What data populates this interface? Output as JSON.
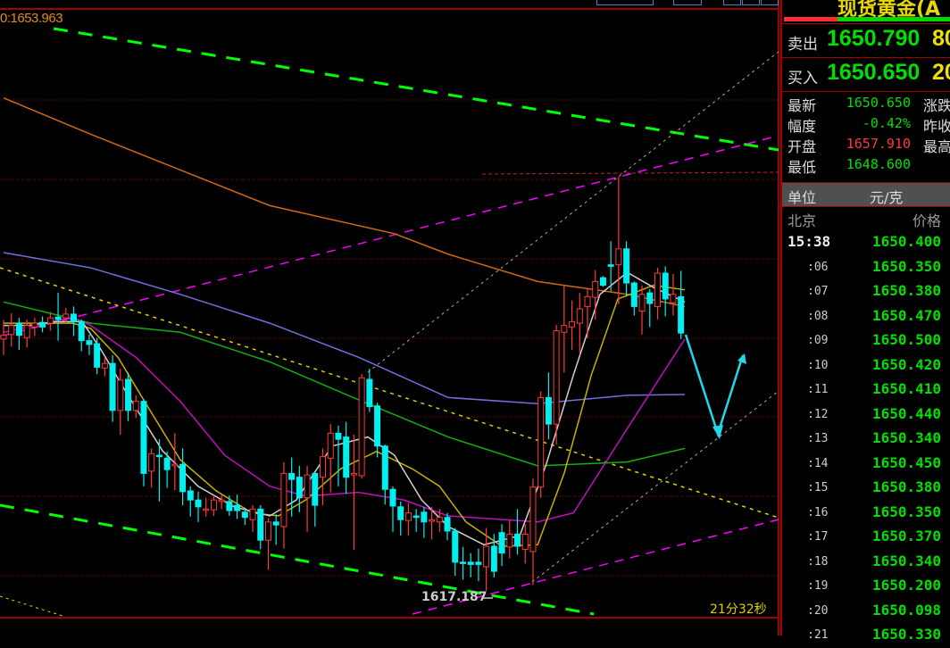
{
  "chart": {
    "top_label": "0:1653.963",
    "low_label": "1617.187",
    "countdown": "21分32秒",
    "colors": {
      "up": "#ff3a3a",
      "down": "#00f0f0",
      "grid": "#a00000",
      "trend_green": "#00ff00",
      "trend_magenta": "#ff00ff",
      "ma_orange": "#d06a10",
      "ma_blue": "#7070e0",
      "ma_green": "#10b010",
      "ma_magenta": "#c010c0",
      "ma_yellow": "#c8b000",
      "ma_white": "#d0d0d0"
    }
  },
  "chart_data": {
    "type": "candlestick",
    "ohlc_fields": [
      "open",
      "close",
      "high",
      "low"
    ],
    "candles": [
      [
        1650.4,
        1650.9,
        1652.9,
        1648.3
      ],
      [
        1651.0,
        1652.2,
        1653.8,
        1649.4
      ],
      [
        1652.5,
        1650.9,
        1653.2,
        1649.0
      ],
      [
        1650.6,
        1652.2,
        1653.0,
        1649.3
      ],
      [
        1652.0,
        1652.5,
        1653.2,
        1650.8
      ],
      [
        1652.6,
        1652.0,
        1653.4,
        1651.3
      ],
      [
        1652.5,
        1653.2,
        1654.0,
        1651.5
      ],
      [
        1653.3,
        1653.0,
        1656.5,
        1650.2
      ],
      [
        1653.2,
        1653.7,
        1654.5,
        1652.5
      ],
      [
        1653.7,
        1652.7,
        1654.7,
        1650.8
      ],
      [
        1652.7,
        1650.2,
        1653.0,
        1648.8
      ],
      [
        1650.2,
        1649.7,
        1651.0,
        1648.3
      ],
      [
        1649.8,
        1646.7,
        1650.6,
        1645.8
      ],
      [
        1646.6,
        1647.2,
        1648.0,
        1645.5
      ],
      [
        1647.2,
        1641.0,
        1648.3,
        1639.5
      ],
      [
        1641.0,
        1645.0,
        1646.5,
        1637.8
      ],
      [
        1645.1,
        1641.0,
        1646.0,
        1639.6
      ],
      [
        1641.0,
        1642.2,
        1643.0,
        1640.0
      ],
      [
        1642.2,
        1632.7,
        1642.5,
        1631.0
      ],
      [
        1633.0,
        1635.3,
        1636.0,
        1630.8
      ],
      [
        1635.1,
        1634.9,
        1637.2,
        1629.0
      ],
      [
        1634.7,
        1633.2,
        1635.6,
        1630.8
      ],
      [
        1633.7,
        1633.9,
        1638.0,
        1630.5
      ],
      [
        1633.9,
        1630.3,
        1636.0,
        1628.5
      ],
      [
        1630.4,
        1629.2,
        1631.0,
        1627.0
      ],
      [
        1629.2,
        1628.3,
        1630.3,
        1626.3
      ],
      [
        1627.9,
        1628.0,
        1629.5,
        1627.0
      ],
      [
        1627.9,
        1629.2,
        1629.8,
        1627.1
      ],
      [
        1629.0,
        1629.2,
        1629.8,
        1628.0
      ],
      [
        1629.0,
        1627.8,
        1629.8,
        1627.1
      ],
      [
        1628.5,
        1627.8,
        1629.9,
        1626.7
      ],
      [
        1627.6,
        1626.9,
        1628.2,
        1625.9
      ],
      [
        1626.6,
        1628.0,
        1628.5,
        1625.0
      ],
      [
        1628.0,
        1623.9,
        1628.5,
        1622.7
      ],
      [
        1623.9,
        1626.3,
        1626.8,
        1620.0
      ],
      [
        1626.3,
        1625.9,
        1627.3,
        1623.3
      ],
      [
        1625.7,
        1632.7,
        1634.2,
        1622.8
      ],
      [
        1632.7,
        1631.9,
        1634.8,
        1627.0
      ],
      [
        1632.2,
        1629.5,
        1633.7,
        1627.6
      ],
      [
        1629.5,
        1632.5,
        1633.7,
        1625.0
      ],
      [
        1632.7,
        1628.5,
        1632.8,
        1625.7
      ],
      [
        1632.2,
        1634.9,
        1636.0,
        1628.5
      ],
      [
        1634.7,
        1638.0,
        1639.2,
        1630.2
      ],
      [
        1638.0,
        1637.2,
        1639.0,
        1631.0
      ],
      [
        1637.5,
        1632.2,
        1639.5,
        1630.0
      ],
      [
        1632.5,
        1632.7,
        1637.8,
        1622.6
      ],
      [
        1632.4,
        1645.3,
        1645.8,
        1632.0
      ],
      [
        1645.1,
        1641.5,
        1646.5,
        1640.8
      ],
      [
        1641.6,
        1636.3,
        1642.0,
        1634.8
      ],
      [
        1636.3,
        1630.6,
        1636.5,
        1628.6
      ],
      [
        1630.6,
        1628.4,
        1631.0,
        1625.0
      ],
      [
        1628.3,
        1626.6,
        1629.0,
        1624.5
      ],
      [
        1626.5,
        1627.5,
        1628.8,
        1624.5
      ],
      [
        1627.1,
        1626.9,
        1628.0,
        1625.0
      ],
      [
        1627.6,
        1626.3,
        1628.3,
        1624.2
      ],
      [
        1626.4,
        1626.6,
        1628.3,
        1624.0
      ],
      [
        1626.3,
        1626.9,
        1628.0,
        1625.0
      ],
      [
        1626.9,
        1625.1,
        1627.5,
        1623.9
      ],
      [
        1625.1,
        1621.0,
        1625.5,
        1619.2
      ],
      [
        1621.0,
        1620.9,
        1623.0,
        1618.7
      ],
      [
        1621.0,
        1620.7,
        1622.2,
        1619.0
      ],
      [
        1621.0,
        1620.7,
        1622.8,
        1618.5
      ],
      [
        1620.4,
        1623.1,
        1625.5,
        1617.2
      ],
      [
        1623.1,
        1619.8,
        1624.7,
        1619.0
      ],
      [
        1624.9,
        1622.2,
        1626.0,
        1620.5
      ],
      [
        1623.0,
        1624.7,
        1626.5,
        1621.5
      ],
      [
        1624.7,
        1623.1,
        1628.0,
        1622.0
      ],
      [
        1622.7,
        1624.7,
        1626.0,
        1620.8
      ],
      [
        1622.4,
        1630.9,
        1632.0,
        1618.0
      ],
      [
        1630.9,
        1642.7,
        1643.5,
        1629.5
      ],
      [
        1642.7,
        1639.2,
        1646.0,
        1637.2
      ],
      [
        1639.2,
        1651.5,
        1652.3,
        1636.5
      ],
      [
        1651.3,
        1652.2,
        1657.5,
        1646.0
      ],
      [
        1652.0,
        1652.7,
        1655.5,
        1649.0
      ],
      [
        1652.5,
        1654.4,
        1656.5,
        1648.6
      ],
      [
        1654.7,
        1656.0,
        1657.0,
        1650.5
      ],
      [
        1655.9,
        1658.0,
        1659.5,
        1653.0
      ],
      [
        1658.5,
        1657.5,
        1658.7,
        1657.3
      ],
      [
        1660.2,
        1660.0,
        1663.3,
        1656.7
      ],
      [
        1660.2,
        1662.3,
        1671.8,
        1655.0
      ],
      [
        1662.3,
        1657.8,
        1663.3,
        1656.0
      ],
      [
        1657.8,
        1654.7,
        1658.0,
        1653.5
      ],
      [
        1654.1,
        1656.3,
        1657.5,
        1651.0
      ],
      [
        1656.5,
        1655.1,
        1657.0,
        1652.0
      ],
      [
        1654.7,
        1659.1,
        1659.8,
        1653.0
      ],
      [
        1659.1,
        1655.7,
        1660.0,
        1653.4
      ],
      [
        1655.2,
        1656.3,
        1659.0,
        1653.5
      ],
      [
        1656.0,
        1651.2,
        1659.4,
        1650.4
      ]
    ],
    "moving_averages": [
      {
        "color": "#d06a10",
        "points": [
          [
            0,
            1682.2
          ],
          [
            11.2,
            1677.4
          ],
          [
            22.7,
            1672.7
          ],
          [
            34.2,
            1668.0
          ],
          [
            50.2,
            1664.3
          ],
          [
            57.1,
            1661.6
          ],
          [
            68.6,
            1658.0
          ],
          [
            80.1,
            1656.3
          ],
          [
            87.5,
            1654.7
          ]
        ]
      },
      {
        "color": "#7070e0",
        "points": [
          [
            0,
            1661.8
          ],
          [
            11.2,
            1659.8
          ],
          [
            22.7,
            1656.3
          ],
          [
            34.2,
            1652.5
          ],
          [
            45.6,
            1648.0
          ],
          [
            57.1,
            1642.7
          ],
          [
            68.6,
            1641.9
          ],
          [
            80.1,
            1643.0
          ],
          [
            87.5,
            1643.1
          ]
        ]
      },
      {
        "color": "#10b010",
        "points": [
          [
            0,
            1655.3
          ],
          [
            11.2,
            1652.5
          ],
          [
            22.7,
            1651.3
          ],
          [
            34.2,
            1647.4
          ],
          [
            45.6,
            1642.4
          ],
          [
            57.1,
            1637.5
          ],
          [
            68.6,
            1633.7
          ],
          [
            80.1,
            1634.2
          ],
          [
            87.5,
            1636.0
          ]
        ]
      },
      {
        "color": "#c010c0",
        "points": [
          [
            0,
            1651.3
          ],
          [
            8.9,
            1653.3
          ],
          [
            11.2,
            1652.2
          ],
          [
            17.0,
            1648.0
          ],
          [
            22.7,
            1642.2
          ],
          [
            28.4,
            1635.1
          ],
          [
            34.2,
            1631.0
          ],
          [
            38.8,
            1629.7
          ],
          [
            45.6,
            1630.2
          ],
          [
            51.4,
            1629.2
          ],
          [
            57.1,
            1627.1
          ],
          [
            68.6,
            1626.3
          ],
          [
            73.2,
            1627.5
          ],
          [
            80.1,
            1638.6
          ],
          [
            87.5,
            1650.4
          ]
        ]
      },
      {
        "color": "#c8b000",
        "points": [
          [
            0,
            1652.5
          ],
          [
            8.9,
            1652.5
          ],
          [
            11.2,
            1651.8
          ],
          [
            14.7,
            1648.0
          ],
          [
            18.1,
            1642.2
          ],
          [
            22.7,
            1634.5
          ],
          [
            27.3,
            1630.4
          ],
          [
            31.9,
            1627.5
          ],
          [
            35.3,
            1627.1
          ],
          [
            38.8,
            1629.2
          ],
          [
            43.3,
            1633.3
          ],
          [
            47.9,
            1635.6
          ],
          [
            52.5,
            1633.3
          ],
          [
            56.0,
            1631.0
          ],
          [
            59.4,
            1626.3
          ],
          [
            64.0,
            1623.1
          ],
          [
            68.6,
            1623.3
          ],
          [
            72.0,
            1632.7
          ],
          [
            75.5,
            1645.7
          ],
          [
            78.9,
            1655.7
          ],
          [
            83.5,
            1657.5
          ],
          [
            87.5,
            1656.9
          ]
        ]
      },
      {
        "color": "#d0d0d0",
        "points": [
          [
            0,
            1652.2
          ],
          [
            3.2,
            1652.2
          ],
          [
            6.7,
            1652.7
          ],
          [
            10.1,
            1652.7
          ],
          [
            12.4,
            1649.2
          ],
          [
            15.8,
            1643.3
          ],
          [
            20.4,
            1635.7
          ],
          [
            25.0,
            1631.0
          ],
          [
            29.6,
            1628.3
          ],
          [
            34.2,
            1627.1
          ],
          [
            37.6,
            1629.2
          ],
          [
            42.2,
            1636.3
          ],
          [
            46.8,
            1637.5
          ],
          [
            50.2,
            1635.1
          ],
          [
            53.7,
            1629.2
          ],
          [
            57.1,
            1625.7
          ],
          [
            61.7,
            1623.3
          ],
          [
            66.3,
            1624.5
          ],
          [
            69.7,
            1633.9
          ],
          [
            73.2,
            1645.7
          ],
          [
            76.6,
            1656.3
          ],
          [
            80.1,
            1659.2
          ],
          [
            83.5,
            1657.2
          ],
          [
            87.5,
            1655.3
          ]
        ]
      }
    ]
  },
  "panel": {
    "title": "现货黄金(A",
    "sell": {
      "label": "卖出",
      "price": "1650.790",
      "volume": "80"
    },
    "buy": {
      "label": "买入",
      "price": "1650.650",
      "volume": "20"
    },
    "info": [
      {
        "label": "最新",
        "value": "1650.650",
        "color": "#00e000",
        "label2": "涨跌"
      },
      {
        "label": "幅度",
        "value": "-0.42%",
        "color": "#00e000",
        "label2": "昨收"
      },
      {
        "label": "开盘",
        "value": "1657.910",
        "color": "#ff3a3a",
        "label2": "最高"
      },
      {
        "label": "最低",
        "value": "1648.600",
        "color": "#00e000",
        "label2": ""
      }
    ],
    "unit": {
      "label": "单位",
      "value": "元/克"
    },
    "ticks_header": {
      "time": "北京",
      "price": "价格"
    },
    "ticks": [
      {
        "time": "15:38",
        "price": "1650.400"
      },
      {
        "time": ":06",
        "price": "1650.350"
      },
      {
        "time": ":07",
        "price": "1650.380"
      },
      {
        "time": ":08",
        "price": "1650.470"
      },
      {
        "time": ":09",
        "price": "1650.500"
      },
      {
        "time": ":10",
        "price": "1650.420"
      },
      {
        "time": ":11",
        "price": "1650.410"
      },
      {
        "time": ":12",
        "price": "1650.440"
      },
      {
        "time": ":13",
        "price": "1650.340"
      },
      {
        "time": ":14",
        "price": "1650.450"
      },
      {
        "time": ":15",
        "price": "1650.380"
      },
      {
        "time": ":16",
        "price": "1650.350"
      },
      {
        "time": ":17",
        "price": "1650.370"
      },
      {
        "time": ":18",
        "price": "1650.340"
      },
      {
        "time": ":19",
        "price": "1650.200"
      },
      {
        "time": ":20",
        "price": "1650.098"
      },
      {
        "time": ":21",
        "price": "1650.330"
      }
    ]
  }
}
